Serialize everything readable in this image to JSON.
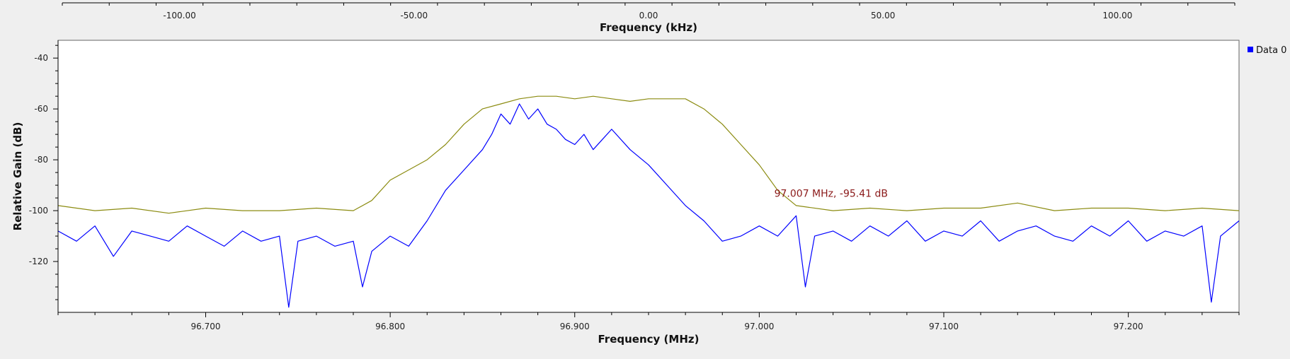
{
  "colors": {
    "background": "#efefef",
    "canvas": "#ffffff",
    "series_blue": "#0000ff",
    "series_olive": "#8b8b10",
    "marker_text": "#8b1a1a",
    "axis": "#000000"
  },
  "chart_data": [
    {
      "type": "axis",
      "id": "top-axis",
      "xlabel": "Frequency (kHz)",
      "xlim": [
        -125,
        125
      ],
      "ticks": [
        -100,
        -50,
        0,
        50,
        100
      ],
      "tick_labels": [
        "-100.00",
        "-50.00",
        "0.00",
        "50.00",
        "100.00"
      ],
      "minor_step": 10
    },
    {
      "type": "line",
      "id": "main-plot",
      "xlabel": "Frequency (MHz)",
      "ylabel": "Relative Gain (dB)",
      "xlim": [
        96.62,
        97.26
      ],
      "ylim": [
        -140,
        -33
      ],
      "x_ticks": [
        96.7,
        96.8,
        96.9,
        97.0,
        97.1,
        97.2
      ],
      "x_tick_labels": [
        "96.700",
        "96.800",
        "96.900",
        "97.000",
        "97.100",
        "97.200"
      ],
      "y_ticks": [
        -40,
        -60,
        -80,
        -100,
        -120
      ],
      "y_tick_labels": [
        "-40",
        "-60",
        "-80",
        "-100",
        "-120"
      ],
      "grid": false,
      "legend_position": "top-right",
      "legend": [
        "Data 0"
      ],
      "series": [
        {
          "name": "Data 0",
          "color": "#0000ff",
          "x": [
            96.62,
            96.63,
            96.64,
            96.65,
            96.66,
            96.67,
            96.68,
            96.69,
            96.7,
            96.71,
            96.72,
            96.73,
            96.74,
            96.745,
            96.75,
            96.76,
            96.77,
            96.78,
            96.785,
            96.79,
            96.8,
            96.81,
            96.82,
            96.83,
            96.84,
            96.85,
            96.855,
            96.86,
            96.865,
            96.87,
            96.875,
            96.88,
            96.885,
            96.89,
            96.895,
            96.9,
            96.905,
            96.91,
            96.915,
            96.92,
            96.93,
            96.94,
            96.95,
            96.96,
            96.97,
            96.98,
            96.99,
            97.0,
            97.01,
            97.02,
            97.025,
            97.03,
            97.04,
            97.05,
            97.06,
            97.07,
            97.08,
            97.09,
            97.1,
            97.11,
            97.12,
            97.13,
            97.14,
            97.15,
            97.16,
            97.17,
            97.18,
            97.19,
            97.2,
            97.21,
            97.22,
            97.23,
            97.24,
            97.245,
            97.25,
            97.26
          ],
          "y": [
            -108,
            -112,
            -106,
            -118,
            -108,
            -110,
            -112,
            -106,
            -110,
            -114,
            -108,
            -112,
            -110,
            -138,
            -112,
            -110,
            -114,
            -112,
            -130,
            -116,
            -110,
            -114,
            -104,
            -92,
            -84,
            -76,
            -70,
            -62,
            -66,
            -58,
            -64,
            -60,
            -66,
            -68,
            -72,
            -74,
            -70,
            -76,
            -72,
            -68,
            -76,
            -82,
            -90,
            -98,
            -104,
            -112,
            -110,
            -106,
            -110,
            -102,
            -130,
            -110,
            -108,
            -112,
            -106,
            -110,
            -104,
            -112,
            -108,
            -110,
            -104,
            -112,
            -108,
            -106,
            -110,
            -112,
            -106,
            -110,
            -104,
            -112,
            -108,
            -110,
            -106,
            -136,
            -110,
            -104
          ]
        },
        {
          "name": "",
          "color": "#8b8b10",
          "x": [
            96.62,
            96.64,
            96.66,
            96.68,
            96.7,
            96.72,
            96.74,
            96.76,
            96.78,
            96.79,
            96.8,
            96.81,
            96.82,
            96.83,
            96.84,
            96.85,
            96.86,
            96.87,
            96.88,
            96.89,
            96.9,
            96.91,
            96.92,
            96.93,
            96.94,
            96.95,
            96.96,
            96.97,
            96.98,
            96.99,
            97.0,
            97.01,
            97.02,
            97.04,
            97.06,
            97.08,
            97.1,
            97.12,
            97.14,
            97.16,
            97.18,
            97.2,
            97.22,
            97.24,
            97.26
          ],
          "y": [
            -98,
            -100,
            -99,
            -101,
            -99,
            -100,
            -100,
            -99,
            -100,
            -96,
            -88,
            -84,
            -80,
            -74,
            -66,
            -60,
            -58,
            -56,
            -55,
            -55,
            -56,
            -55,
            -56,
            -57,
            -56,
            -56,
            -56,
            -60,
            -66,
            -74,
            -82,
            -92,
            -98,
            -100,
            -99,
            -100,
            -99,
            -99,
            -97,
            -100,
            -99,
            -99,
            -100,
            -99,
            -100
          ]
        }
      ],
      "annotations": [
        {
          "text": "97.007 MHz, -95.41 dB",
          "x": 97.007,
          "y": -95.41
        }
      ]
    }
  ]
}
